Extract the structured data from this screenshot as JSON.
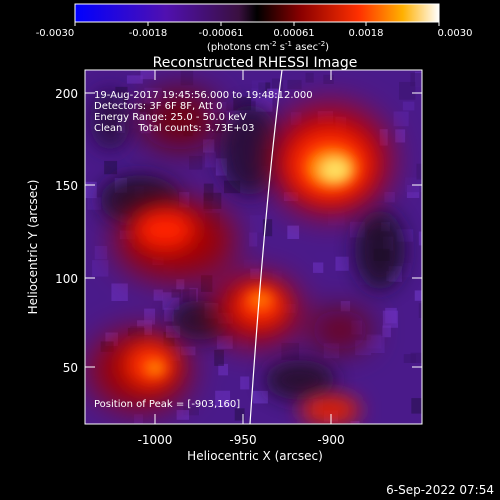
{
  "colorbar": {
    "ticks": [
      "-0.0030",
      "-0.0018",
      "-0.00061",
      "0.00061",
      "0.0018",
      "0.0030"
    ],
    "units_prefix": "(photons cm",
    "units_exp1": "-2",
    "units_mid": " s",
    "units_exp2": "-1",
    "units_mid2": " asec",
    "units_exp3": "-2",
    "units_suffix": ")"
  },
  "title": "Reconstructed RHESSI Image",
  "info": {
    "line1": "19-Aug-2017 19:45:56.000 to 19:48:12.000",
    "line2": "Detectors: 3F 6F 8F, Att 0",
    "line3": "Energy Range: 25.0 - 50.0 keV",
    "line4": "Clean     Total counts: 3.73E+03"
  },
  "peak": "Position of Peak = [-903,160]",
  "axes": {
    "xlabel": "Heliocentric X (arcsec)",
    "ylabel": "Heliocentric Y (arcsec)",
    "xticks": [
      "-1000",
      "-950",
      "-900"
    ],
    "yticks": [
      "50",
      "100",
      "150",
      "200"
    ]
  },
  "footer_date": "6-Sep-2022 07:54"
}
